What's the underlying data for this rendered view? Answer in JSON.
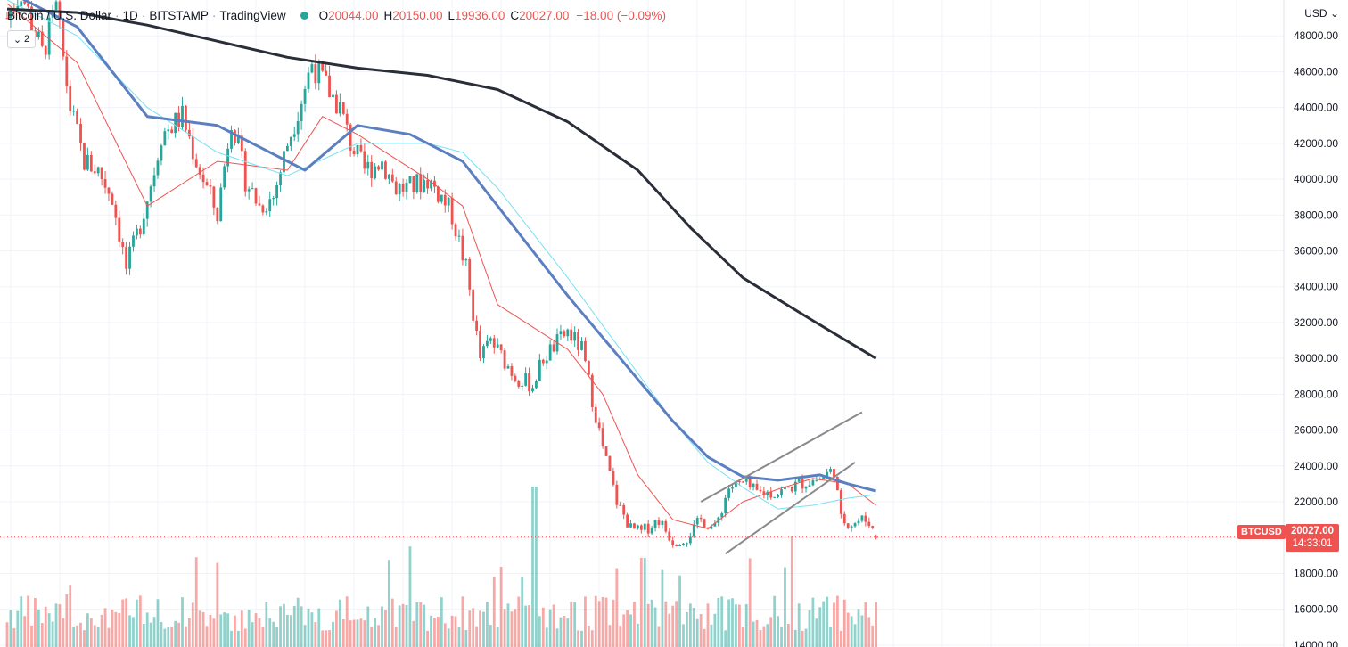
{
  "header": {
    "symbol_name": "Bitcoin / U.S. Dollar",
    "interval": "1D",
    "exchange": "BITSTAMP",
    "source": "TradingView",
    "open_label": "O",
    "open_value": "20044.00",
    "high_label": "H",
    "high_value": "20150.00",
    "low_label": "L",
    "low_value": "19936.00",
    "close_label": "C",
    "close_value": "20027.00",
    "change": "−18.00 (−0.09%)",
    "collapse_count": "2"
  },
  "currency_label": "USD",
  "last_price": {
    "symbol": "BTCUSD",
    "price": "20027.00",
    "countdown": "14:33:01"
  },
  "colors": {
    "up": "#26a69a",
    "down": "#ef5350",
    "ma_fast": "#ef5350",
    "ma_cyan": "#76e2f0",
    "ma_blue": "#5b7fc0",
    "ma_dark": "#2a2e39",
    "trendline": "#8a8a8a",
    "grid": "#f0f3fa",
    "text": "#131722"
  },
  "chart_data": {
    "type": "candlestick",
    "ylim": [
      13000,
      50000
    ],
    "y_ticks": [
      "48000.00",
      "46000.00",
      "44000.00",
      "42000.00",
      "40000.00",
      "38000.00",
      "36000.00",
      "34000.00",
      "32000.00",
      "30000.00",
      "28000.00",
      "26000.00",
      "24000.00",
      "22000.00",
      "20000.00",
      "18000.00",
      "16000.00",
      "14000.00"
    ],
    "price_path": [
      [
        0,
        49000
      ],
      [
        4,
        50500
      ],
      [
        10,
        47000
      ],
      [
        14,
        49500
      ],
      [
        18,
        44000
      ],
      [
        22,
        41000
      ],
      [
        26,
        40500
      ],
      [
        30,
        39000
      ],
      [
        34,
        35000
      ],
      [
        38,
        37500
      ],
      [
        42,
        40500
      ],
      [
        44,
        42500
      ],
      [
        50,
        43500
      ],
      [
        54,
        41000
      ],
      [
        60,
        38000
      ],
      [
        64,
        43500
      ],
      [
        68,
        40000
      ],
      [
        72,
        38500
      ],
      [
        76,
        39000
      ],
      [
        80,
        42000
      ],
      [
        84,
        44500
      ],
      [
        87,
        46500
      ],
      [
        90,
        45500
      ],
      [
        95,
        44000
      ],
      [
        98,
        42000
      ],
      [
        102,
        40500
      ],
      [
        107,
        41000
      ],
      [
        111,
        39500
      ],
      [
        115,
        39500
      ],
      [
        120,
        40000
      ],
      [
        124,
        39000
      ],
      [
        127,
        38000
      ],
      [
        131,
        35000
      ],
      [
        135,
        30000
      ],
      [
        138,
        31000
      ],
      [
        145,
        29000
      ],
      [
        150,
        28500
      ],
      [
        153,
        30000
      ],
      [
        160,
        31500
      ],
      [
        164,
        30500
      ],
      [
        170,
        25000
      ],
      [
        174,
        22000
      ],
      [
        178,
        20500
      ],
      [
        181,
        20300
      ],
      [
        186,
        21000
      ],
      [
        190,
        19800
      ],
      [
        194,
        20000
      ],
      [
        198,
        21000
      ],
      [
        202,
        20500
      ],
      [
        206,
        22800
      ],
      [
        210,
        23000
      ],
      [
        214,
        22500
      ],
      [
        220,
        22500
      ],
      [
        226,
        23000
      ],
      [
        232,
        23300
      ],
      [
        236,
        23800
      ],
      [
        238,
        21000
      ],
      [
        241,
        20800
      ],
      [
        244,
        21000
      ],
      [
        246,
        20900
      ],
      [
        248,
        20027
      ]
    ],
    "trend_channel": {
      "upper": [
        [
          198,
          22000
        ],
        [
          244,
          27000
        ]
      ],
      "lower": [
        [
          205,
          19100
        ],
        [
          242,
          24200
        ]
      ]
    },
    "moving_averages": [
      {
        "color_key": "ma_fast",
        "points": [
          [
            0,
            49800
          ],
          [
            20,
            46500
          ],
          [
            40,
            38500
          ],
          [
            60,
            41000
          ],
          [
            80,
            40500
          ],
          [
            90,
            43500
          ],
          [
            100,
            42500
          ],
          [
            120,
            40000
          ],
          [
            130,
            38500
          ],
          [
            140,
            33000
          ],
          [
            160,
            30500
          ],
          [
            170,
            28000
          ],
          [
            180,
            23500
          ],
          [
            190,
            21000
          ],
          [
            200,
            20500
          ],
          [
            210,
            22000
          ],
          [
            220,
            22700
          ],
          [
            230,
            23300
          ],
          [
            240,
            23000
          ],
          [
            248,
            21800
          ]
        ]
      },
      {
        "color_key": "ma_cyan",
        "points": [
          [
            0,
            50000
          ],
          [
            20,
            48000
          ],
          [
            40,
            44000
          ],
          [
            60,
            41500
          ],
          [
            80,
            40200
          ],
          [
            100,
            42000
          ],
          [
            120,
            42000
          ],
          [
            130,
            41500
          ],
          [
            140,
            39500
          ],
          [
            160,
            34500
          ],
          [
            175,
            30500
          ],
          [
            190,
            26500
          ],
          [
            200,
            24200
          ],
          [
            210,
            22800
          ],
          [
            220,
            21600
          ],
          [
            230,
            21800
          ],
          [
            240,
            22200
          ],
          [
            248,
            22400
          ]
        ]
      },
      {
        "color_key": "ma_blue",
        "points": [
          [
            0,
            50500
          ],
          [
            20,
            48500
          ],
          [
            40,
            43500
          ],
          [
            60,
            43000
          ],
          [
            75,
            41500
          ],
          [
            85,
            40500
          ],
          [
            100,
            43000
          ],
          [
            115,
            42500
          ],
          [
            130,
            41000
          ],
          [
            140,
            38500
          ],
          [
            160,
            33500
          ],
          [
            175,
            30000
          ],
          [
            190,
            26500
          ],
          [
            200,
            24500
          ],
          [
            210,
            23400
          ],
          [
            220,
            23200
          ],
          [
            232,
            23500
          ],
          [
            240,
            23000
          ],
          [
            248,
            22600
          ]
        ]
      },
      {
        "color_key": "ma_dark",
        "points": [
          [
            0,
            49500
          ],
          [
            20,
            49300
          ],
          [
            40,
            48600
          ],
          [
            60,
            47700
          ],
          [
            80,
            46800
          ],
          [
            100,
            46200
          ],
          [
            120,
            45800
          ],
          [
            140,
            45000
          ],
          [
            160,
            43200
          ],
          [
            180,
            40500
          ],
          [
            195,
            37300
          ],
          [
            210,
            34500
          ],
          [
            230,
            32100
          ],
          [
            248,
            30000
          ]
        ]
      }
    ],
    "volume_scale_note": "relative"
  }
}
